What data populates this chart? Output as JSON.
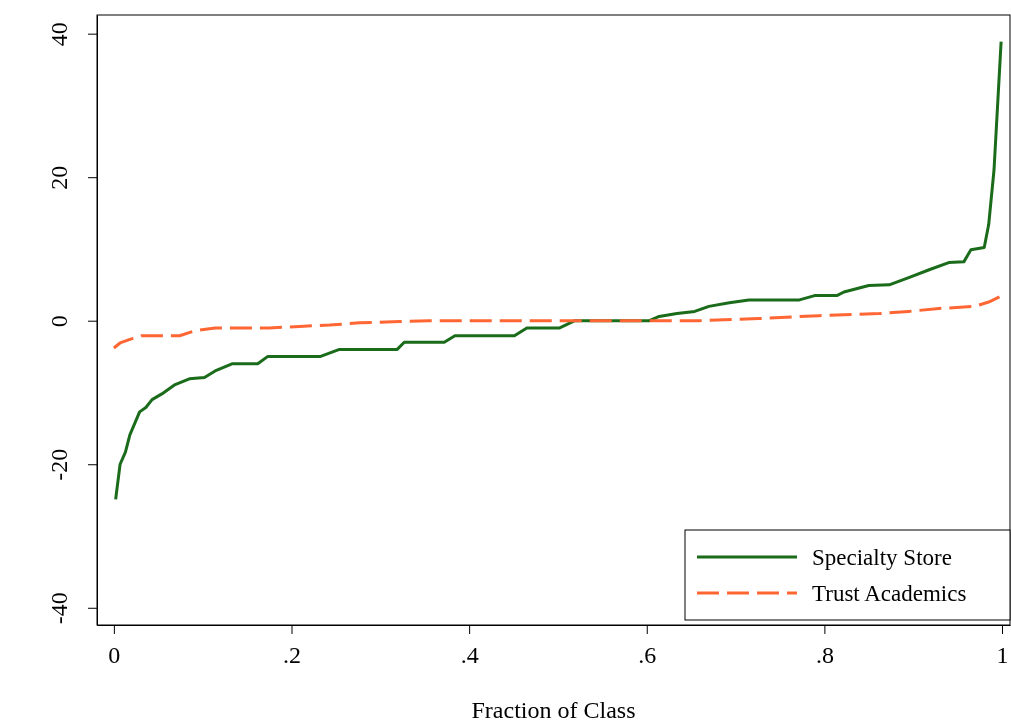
{
  "chart_data": {
    "type": "line",
    "xlabel": "Fraction of Class",
    "xlim": [
      -0.019,
      1.009
    ],
    "ylim": [
      -42.4,
      42.6
    ],
    "xticks": [
      0,
      {
        "value": 0.2,
        "label": ".2"
      },
      {
        "value": 0.4,
        "label": ".4"
      },
      {
        "value": 0.6,
        "label": ".6"
      },
      {
        "value": 0.8,
        "label": ".8"
      },
      1
    ],
    "yticks": [
      -40,
      -20,
      0,
      20,
      40
    ],
    "grid": false,
    "legend": "bottom right",
    "marker": "none",
    "series": [
      {
        "name": "Specialty Store",
        "color": "#1a6b1a",
        "line_style": "solid",
        "x": [
          0.002,
          0.007,
          0.013,
          0.018,
          0.029,
          0.036,
          0.043,
          0.054,
          0.069,
          0.085,
          0.102,
          0.114,
          0.133,
          0.162,
          0.173,
          0.232,
          0.254,
          0.319,
          0.327,
          0.372,
          0.384,
          0.451,
          0.465,
          0.502,
          0.519,
          0.603,
          0.614,
          0.634,
          0.654,
          0.67,
          0.693,
          0.715,
          0.772,
          0.789,
          0.814,
          0.822,
          0.85,
          0.873,
          0.895,
          0.918,
          0.94,
          0.957,
          0.965,
          0.98,
          0.985,
          0.991,
          0.999
        ],
        "values": [
          -24.9,
          -20,
          -18.3,
          -15.9,
          -12.7,
          -12.1,
          -11,
          -10.2,
          -8.9,
          -8.1,
          -7.9,
          -7,
          -6,
          -6,
          -5,
          -5,
          -4,
          -4,
          -3,
          -3,
          -2.1,
          -2.1,
          -1,
          -1,
          0,
          0,
          0.6,
          1,
          1.3,
          2,
          2.5,
          2.9,
          2.9,
          3.5,
          3.5,
          4,
          4.9,
          5,
          6,
          7.1,
          8.1,
          8.2,
          9.9,
          10.2,
          13.4,
          21,
          38.9
        ]
      },
      {
        "name": "Trust Academics",
        "color": "#ff6633",
        "line_style": "dashed",
        "x": [
          0,
          0.007,
          0.018,
          0.031,
          0.074,
          0.091,
          0.114,
          0.175,
          0.209,
          0.243,
          0.277,
          0.322,
          0.355,
          0.659,
          0.726,
          0.794,
          0.862,
          0.895,
          0.929,
          0.969,
          0.985,
          1
        ],
        "values": [
          -3.8,
          -3.1,
          -2.6,
          -2.1,
          -2.1,
          -1.4,
          -1,
          -1,
          -0.8,
          -0.6,
          -0.3,
          -0.1,
          0,
          0,
          0.3,
          0.7,
          1,
          1.3,
          1.7,
          2,
          2.6,
          3.5
        ]
      }
    ]
  }
}
